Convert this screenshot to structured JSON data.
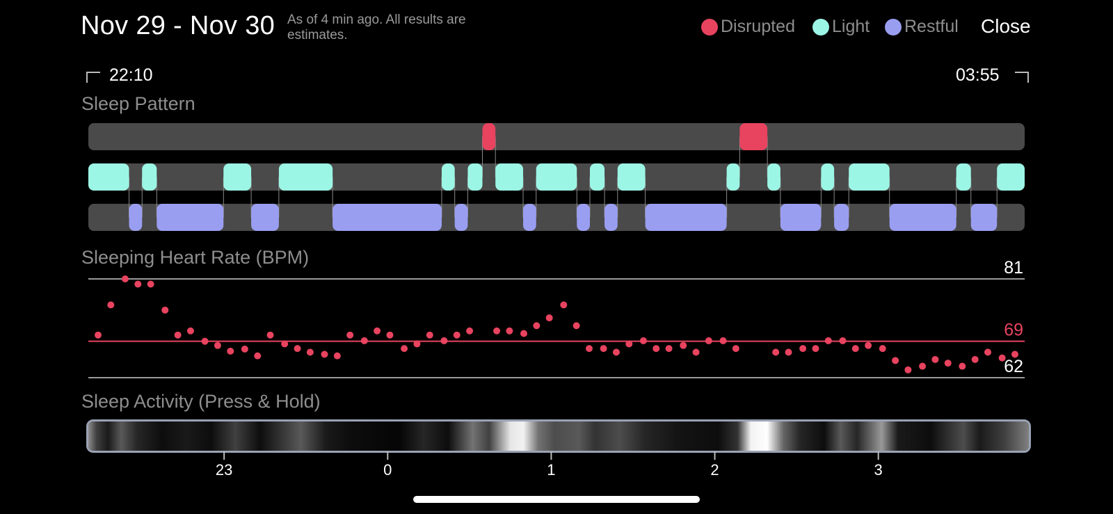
{
  "header": {
    "title": "Nov 29 - Nov 30",
    "subtitle": "As of 4 min ago. All results are estimates.",
    "close_label": "Close"
  },
  "legend": [
    {
      "label": "Disrupted",
      "color": "#E8435F"
    },
    {
      "label": "Light",
      "color": "#9CF6E5"
    },
    {
      "label": "Restful",
      "color": "#9A9EF1"
    }
  ],
  "time_range": {
    "start": "22:10",
    "end": "03:55"
  },
  "sections": {
    "sleep_pattern": "Sleep Pattern",
    "heart_rate": "Sleeping Heart Rate (BPM)",
    "activity": "Sleep Activity (Press & Hold)"
  },
  "colors": {
    "track": "#4a4a4a",
    "disrupted": "#E8435F",
    "light": "#9CF6E5",
    "restful": "#9A9EF1",
    "connector": "#8a8a8a",
    "hr_dot": "#E8435F",
    "hr_avg_line": "#E8435F",
    "grid_line": "#9a9a9a"
  },
  "chart_data": [
    {
      "type": "timeline",
      "name": "Sleep Pattern",
      "x_unit": "hours since 22:10",
      "x_range": [
        0,
        5.75
      ],
      "rows": [
        "Disrupted",
        "Light",
        "Restful"
      ],
      "segments": [
        {
          "stage": "Light",
          "start": 0.0,
          "end": 0.25
        },
        {
          "stage": "Restful",
          "start": 0.25,
          "end": 0.33
        },
        {
          "stage": "Light",
          "start": 0.33,
          "end": 0.42
        },
        {
          "stage": "Restful",
          "start": 0.42,
          "end": 0.83
        },
        {
          "stage": "Light",
          "start": 0.83,
          "end": 1.0
        },
        {
          "stage": "Restful",
          "start": 1.0,
          "end": 1.17
        },
        {
          "stage": "Light",
          "start": 1.17,
          "end": 1.5
        },
        {
          "stage": "Restful",
          "start": 1.5,
          "end": 2.17
        },
        {
          "stage": "Light",
          "start": 2.17,
          "end": 2.25
        },
        {
          "stage": "Restful",
          "start": 2.25,
          "end": 2.33
        },
        {
          "stage": "Light",
          "start": 2.33,
          "end": 2.42
        },
        {
          "stage": "Disrupted",
          "start": 2.42,
          "end": 2.5
        },
        {
          "stage": "Light",
          "start": 2.5,
          "end": 2.67
        },
        {
          "stage": "Restful",
          "start": 2.67,
          "end": 2.75
        },
        {
          "stage": "Light",
          "start": 2.75,
          "end": 3.0
        },
        {
          "stage": "Restful",
          "start": 3.0,
          "end": 3.08
        },
        {
          "stage": "Light",
          "start": 3.08,
          "end": 3.17
        },
        {
          "stage": "Restful",
          "start": 3.17,
          "end": 3.25
        },
        {
          "stage": "Light",
          "start": 3.25,
          "end": 3.42
        },
        {
          "stage": "Restful",
          "start": 3.42,
          "end": 3.92
        },
        {
          "stage": "Light",
          "start": 3.92,
          "end": 4.0
        },
        {
          "stage": "Disrupted",
          "start": 4.0,
          "end": 4.17
        },
        {
          "stage": "Light",
          "start": 4.17,
          "end": 4.25
        },
        {
          "stage": "Restful",
          "start": 4.25,
          "end": 4.5
        },
        {
          "stage": "Light",
          "start": 4.5,
          "end": 4.58
        },
        {
          "stage": "Restful",
          "start": 4.58,
          "end": 4.67
        },
        {
          "stage": "Light",
          "start": 4.67,
          "end": 4.92
        },
        {
          "stage": "Restful",
          "start": 4.92,
          "end": 5.33
        },
        {
          "stage": "Light",
          "start": 5.33,
          "end": 5.42
        },
        {
          "stage": "Restful",
          "start": 5.42,
          "end": 5.58
        },
        {
          "stage": "Light",
          "start": 5.58,
          "end": 5.75
        }
      ]
    },
    {
      "type": "scatter",
      "name": "Sleeping Heart Rate (BPM)",
      "x_unit": "hours since 22:10",
      "x_range": [
        0,
        5.75
      ],
      "y_range": [
        62,
        81
      ],
      "reference_lines": [
        81,
        69,
        62
      ],
      "reference_labels": [
        "81",
        "69",
        "62"
      ],
      "highlight_line": 69,
      "x": [
        0.0,
        0.08,
        0.17,
        0.25,
        0.33,
        0.42,
        0.5,
        0.58,
        0.67,
        0.75,
        0.83,
        0.92,
        1.0,
        1.08,
        1.17,
        1.25,
        1.33,
        1.42,
        1.5,
        1.58,
        1.67,
        1.75,
        1.83,
        1.92,
        2.0,
        2.08,
        2.17,
        2.25,
        2.33,
        2.5,
        2.58,
        2.67,
        2.75,
        2.83,
        2.92,
        3.0,
        3.08,
        3.17,
        3.25,
        3.33,
        3.42,
        3.5,
        3.58,
        3.67,
        3.75,
        3.83,
        3.92,
        4.0,
        4.25,
        4.33,
        4.42,
        4.5,
        4.58,
        4.67,
        4.75,
        4.83,
        4.92,
        5.0,
        5.08,
        5.17,
        5.25,
        5.33,
        5.42,
        5.5,
        5.58,
        5.67,
        5.75
      ],
      "y": [
        70.2,
        76.0,
        81.0,
        80.0,
        80.0,
        75.0,
        70.2,
        71.0,
        69.0,
        68.2,
        67.1,
        67.5,
        66.2,
        70.2,
        68.5,
        67.6,
        66.9,
        66.5,
        66.2,
        70.2,
        69.1,
        71.0,
        70.2,
        67.6,
        68.5,
        70.2,
        69.1,
        70.2,
        71.0,
        71.0,
        71.0,
        70.5,
        72.0,
        73.5,
        76.0,
        72.0,
        67.6,
        67.6,
        66.9,
        68.5,
        69.1,
        67.6,
        67.6,
        68.2,
        66.9,
        69.1,
        69.1,
        67.6,
        66.9,
        66.9,
        67.6,
        67.6,
        69.1,
        69.1,
        67.6,
        68.2,
        67.6,
        65.3,
        63.5,
        64.2,
        65.5,
        64.8,
        64.2,
        65.5,
        66.9,
        65.8,
        66.5
      ]
    },
    {
      "type": "heatmap",
      "name": "Sleep Activity (Press & Hold)",
      "x_unit": "hours since 22:10",
      "x_range": [
        0,
        5.75
      ],
      "x_tick_labels": [
        "23",
        "0",
        "1",
        "2",
        "3"
      ],
      "x_ticks": [
        0.83,
        1.83,
        2.83,
        3.83,
        4.83
      ],
      "intensity_stops": [
        {
          "x": 0.0,
          "v": 0.55
        },
        {
          "x": 0.05,
          "v": 0.25
        },
        {
          "x": 0.12,
          "v": 0.1
        },
        {
          "x": 0.2,
          "v": 0.35
        },
        {
          "x": 0.3,
          "v": 0.15
        },
        {
          "x": 0.45,
          "v": 0.05
        },
        {
          "x": 0.6,
          "v": 0.1
        },
        {
          "x": 0.75,
          "v": 0.05
        },
        {
          "x": 0.9,
          "v": 0.25
        },
        {
          "x": 1.05,
          "v": 0.05
        },
        {
          "x": 1.3,
          "v": 0.35
        },
        {
          "x": 1.45,
          "v": 0.1
        },
        {
          "x": 1.6,
          "v": 0.05
        },
        {
          "x": 1.9,
          "v": 0.02
        },
        {
          "x": 2.05,
          "v": 0.15
        },
        {
          "x": 2.2,
          "v": 0.05
        },
        {
          "x": 2.35,
          "v": 0.45
        },
        {
          "x": 2.45,
          "v": 0.25
        },
        {
          "x": 2.58,
          "v": 0.9
        },
        {
          "x": 2.66,
          "v": 0.95
        },
        {
          "x": 2.75,
          "v": 0.45
        },
        {
          "x": 2.85,
          "v": 0.3
        },
        {
          "x": 3.0,
          "v": 0.35
        },
        {
          "x": 3.1,
          "v": 0.2
        },
        {
          "x": 3.25,
          "v": 0.3
        },
        {
          "x": 3.4,
          "v": 0.15
        },
        {
          "x": 3.6,
          "v": 0.08
        },
        {
          "x": 3.85,
          "v": 0.05
        },
        {
          "x": 3.97,
          "v": 0.2
        },
        {
          "x": 4.05,
          "v": 0.95
        },
        {
          "x": 4.15,
          "v": 1.0
        },
        {
          "x": 4.25,
          "v": 0.4
        },
        {
          "x": 4.35,
          "v": 0.15
        },
        {
          "x": 4.5,
          "v": 0.05
        },
        {
          "x": 4.6,
          "v": 0.35
        },
        {
          "x": 4.7,
          "v": 0.15
        },
        {
          "x": 4.85,
          "v": 0.6
        },
        {
          "x": 4.95,
          "v": 0.1
        },
        {
          "x": 5.15,
          "v": 0.05
        },
        {
          "x": 5.35,
          "v": 0.3
        },
        {
          "x": 5.45,
          "v": 0.1
        },
        {
          "x": 5.6,
          "v": 0.25
        },
        {
          "x": 5.75,
          "v": 0.5
        }
      ]
    }
  ]
}
